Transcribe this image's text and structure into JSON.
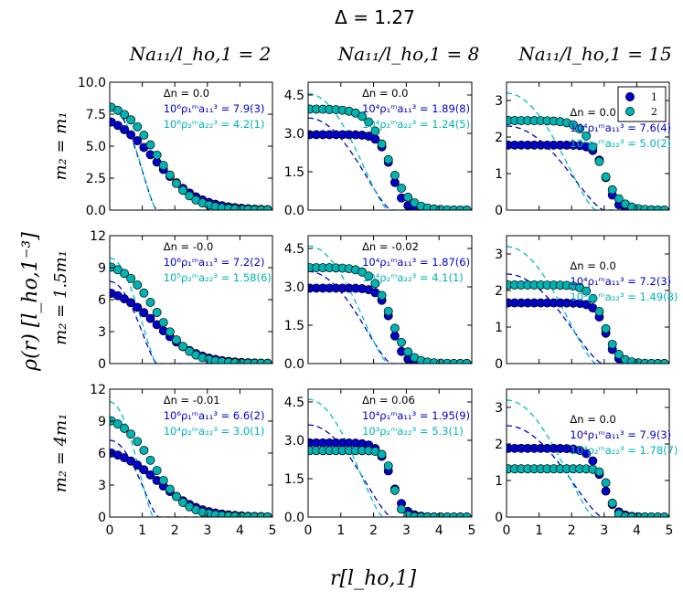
{
  "chart_data": {
    "type": "scatter",
    "title": "Δ = 1.27",
    "xlabel": "r[l_ho,1]",
    "ylabel": "ρ(r) [l_ho,1^-3]",
    "columns": [
      "Na11/l_ho,1 = 2",
      "Na11/l_ho,1 = 8",
      "Na11/l_ho,1 = 15"
    ],
    "rows": [
      "m2 = m1",
      "m2 = 1.5m1",
      "m2 = 4m1"
    ],
    "xlim": [
      0,
      5
    ],
    "xticks": [
      "0",
      "1",
      "2",
      "3",
      "4",
      "5"
    ],
    "colors": {
      "species1": "#0000cc",
      "species2": "#00b3b3",
      "dash1": "#0000cc",
      "dash2": "#00c0c0",
      "text_black": "#000000"
    },
    "legend": {
      "position": "top-right",
      "entries": [
        "1",
        "2"
      ]
    },
    "panels": [
      {
        "row": 0,
        "col": 0,
        "ylim": [
          0,
          10
        ],
        "yticks": [
          "0.0",
          "2.5",
          "5.0",
          "7.5",
          "10.0"
        ],
        "ann": {
          "dn": "Δn = 0.0",
          "a1": "10⁶ρ₁ᵐa₁₁³ = 7.9(3)",
          "a2": "10⁶ρ₂ᵐa₂₂³ = 4.2(1)"
        },
        "s1": {
          "rho0": 7.8,
          "R": 1.4,
          "s": 1.5
        },
        "s2": {
          "rho0": 8.6,
          "R": 1.45,
          "s": 1.9
        },
        "d1": {
          "rho0": 8.1,
          "R": 1.45
        },
        "d2": {
          "rho0": 8.3,
          "R": 1.45
        }
      },
      {
        "row": 0,
        "col": 1,
        "ylim": [
          0,
          5
        ],
        "yticks": [
          "0.0",
          "1.5",
          "3.0",
          "4.5"
        ],
        "ann": {
          "dn": "Δn = 0.0",
          "a1": "10⁴ρ₁ᵐa₁₁³ = 1.89(8)",
          "a2": "10⁴ρ₂ᵐa₂₂³ = 1.24(5)"
        },
        "s1": {
          "rho0": 2.95,
          "R": 2.55,
          "s": 5.5
        },
        "s2": {
          "rho0": 3.95,
          "R": 2.45,
          "s": 3.2
        },
        "d1": {
          "rho0": 3.6,
          "R": 2.55
        },
        "d2": {
          "rho0": 4.55,
          "R": 2.45
        }
      },
      {
        "row": 0,
        "col": 2,
        "ylim": [
          0,
          3.5
        ],
        "yticks": [
          "0",
          "1",
          "2",
          "3"
        ],
        "ann": {
          "dn": "Δn = 0.0",
          "a1": "10⁴ρ₁ᵐa₁₁³ = 7.6(4)",
          "a2": "10⁴ρ₂ᵐa₂₂³ = 5.0(2)"
        },
        "s1": {
          "rho0": 1.78,
          "R": 3.05,
          "s": 6.0
        },
        "s2": {
          "rho0": 2.45,
          "R": 2.9,
          "s": 3.5
        },
        "d1": {
          "rho0": 2.3,
          "R": 3.0
        },
        "d2": {
          "rho0": 3.2,
          "R": 2.75
        }
      },
      {
        "row": 1,
        "col": 0,
        "ylim": [
          0,
          12
        ],
        "yticks": [
          "0",
          "3",
          "6",
          "9",
          "12"
        ],
        "ann": {
          "dn": "Δn = -0.0",
          "a1": "10⁶ρ₁ᵐa₁₁³ = 7.2(2)",
          "a2": "10⁵ρ₂ᵐa₂₂³ = 1.58(6)"
        },
        "s1": {
          "rho0": 7.3,
          "R": 1.45,
          "s": 1.6
        },
        "s2": {
          "rho0": 9.6,
          "R": 1.45,
          "s": 2.0
        },
        "d1": {
          "rho0": 7.7,
          "R": 1.45
        },
        "d2": {
          "rho0": 9.9,
          "R": 1.45
        }
      },
      {
        "row": 1,
        "col": 1,
        "ylim": [
          0,
          5
        ],
        "yticks": [
          "0.0",
          "1.5",
          "3.0",
          "4.5"
        ],
        "ann": {
          "dn": "Δn = -0.02",
          "a1": "10⁴ρ₁ᵐa₁₁³ = 1.87(6)",
          "a2": "10⁴ρ₂ᵐa₂₂³ = 4.1(1)"
        },
        "s1": {
          "rho0": 2.95,
          "R": 2.55,
          "s": 5.5
        },
        "s2": {
          "rho0": 3.75,
          "R": 2.5,
          "s": 3.6
        },
        "d1": {
          "rho0": 3.6,
          "R": 2.55
        },
        "d2": {
          "rho0": 4.6,
          "R": 2.45
        }
      },
      {
        "row": 1,
        "col": 2,
        "ylim": [
          0,
          3.5
        ],
        "yticks": [
          "0",
          "1",
          "2",
          "3"
        ],
        "ann": {
          "dn": "Δn = 0.0",
          "a1": "10⁴ρ₁ᵐa₁₁³ = 7.2(3)",
          "a2": "10³ρ₂ᵐa₂₂³ = 1.49(8)"
        },
        "s1": {
          "rho0": 1.66,
          "R": 3.05,
          "s": 6.0
        },
        "s2": {
          "rho0": 2.15,
          "R": 3.0,
          "s": 4.5
        },
        "d1": {
          "rho0": 2.45,
          "R": 2.95
        },
        "d2": {
          "rho0": 3.2,
          "R": 2.75
        }
      },
      {
        "row": 2,
        "col": 0,
        "ylim": [
          0,
          12
        ],
        "yticks": [
          "0",
          "3",
          "6",
          "9",
          "12"
        ],
        "ann": {
          "dn": "Δn = -0.01",
          "a1": "10⁶ρ₁ᵐa₁₁³ = 6.6(2)",
          "a2": "10⁴ρ₂ᵐa₂₂³ = 3.0(1)"
        },
        "s1": {
          "rho0": 6.6,
          "R": 1.5,
          "s": 1.6
        },
        "s2": {
          "rho0": 9.7,
          "R": 1.35,
          "s": 2.0
        },
        "d1": {
          "rho0": 7.2,
          "R": 1.5
        },
        "d2": {
          "rho0": 10.8,
          "R": 1.35
        }
      },
      {
        "row": 2,
        "col": 1,
        "ylim": [
          0,
          5
        ],
        "yticks": [
          "0.0",
          "1.5",
          "3.0",
          "4.5"
        ],
        "ann": {
          "dn": "Δn = 0.06",
          "a1": "10⁴ρ₁ᵐa₁₁³ = 1.95(9)",
          "a2": "10³ρ₂ᵐa₂₂³ = 5.3(1)"
        },
        "s1": {
          "rho0": 2.9,
          "R": 2.55,
          "s": 5.0
        },
        "s2": {
          "rho0": 2.6,
          "R": 2.6,
          "s": 8.0
        },
        "d1": {
          "rho0": 3.6,
          "R": 2.55
        },
        "d2": {
          "rho0": 4.6,
          "R": 2.3
        }
      },
      {
        "row": 2,
        "col": 2,
        "ylim": [
          0,
          3.5
        ],
        "yticks": [
          "0",
          "1",
          "2",
          "3"
        ],
        "ann": {
          "dn": "Δn = 0.0",
          "a1": "10⁴ρ₁ᵐa₁₁³ = 7.9(3)",
          "a2": "10³ρ₂ᵐa₂₂³ = 1.78(7)"
        },
        "s1": {
          "rho0": 1.88,
          "R": 2.95,
          "s": 5.0
        },
        "s2": {
          "rho0": 1.32,
          "R": 3.15,
          "s": 9.0
        },
        "d1": {
          "rho0": 2.5,
          "R": 2.95
        },
        "d2": {
          "rho0": 3.2,
          "R": 2.7
        }
      }
    ]
  },
  "labels": {
    "suptitle": "Δ = 1.27",
    "col_titles": [
      "Na₁₁/l_ho,1 = 2",
      "Na₁₁/l_ho,1 = 8",
      "Na₁₁/l_ho,1 = 15"
    ],
    "row_labels": [
      "m₂ = m₁",
      "m₂ = 1.5m₁",
      "m₂ = 4m₁"
    ],
    "ylabel": "ρ(r) [l_ho,1⁻³]",
    "xlabel": "r[l_ho,1]",
    "legend": [
      "1",
      "2"
    ]
  }
}
